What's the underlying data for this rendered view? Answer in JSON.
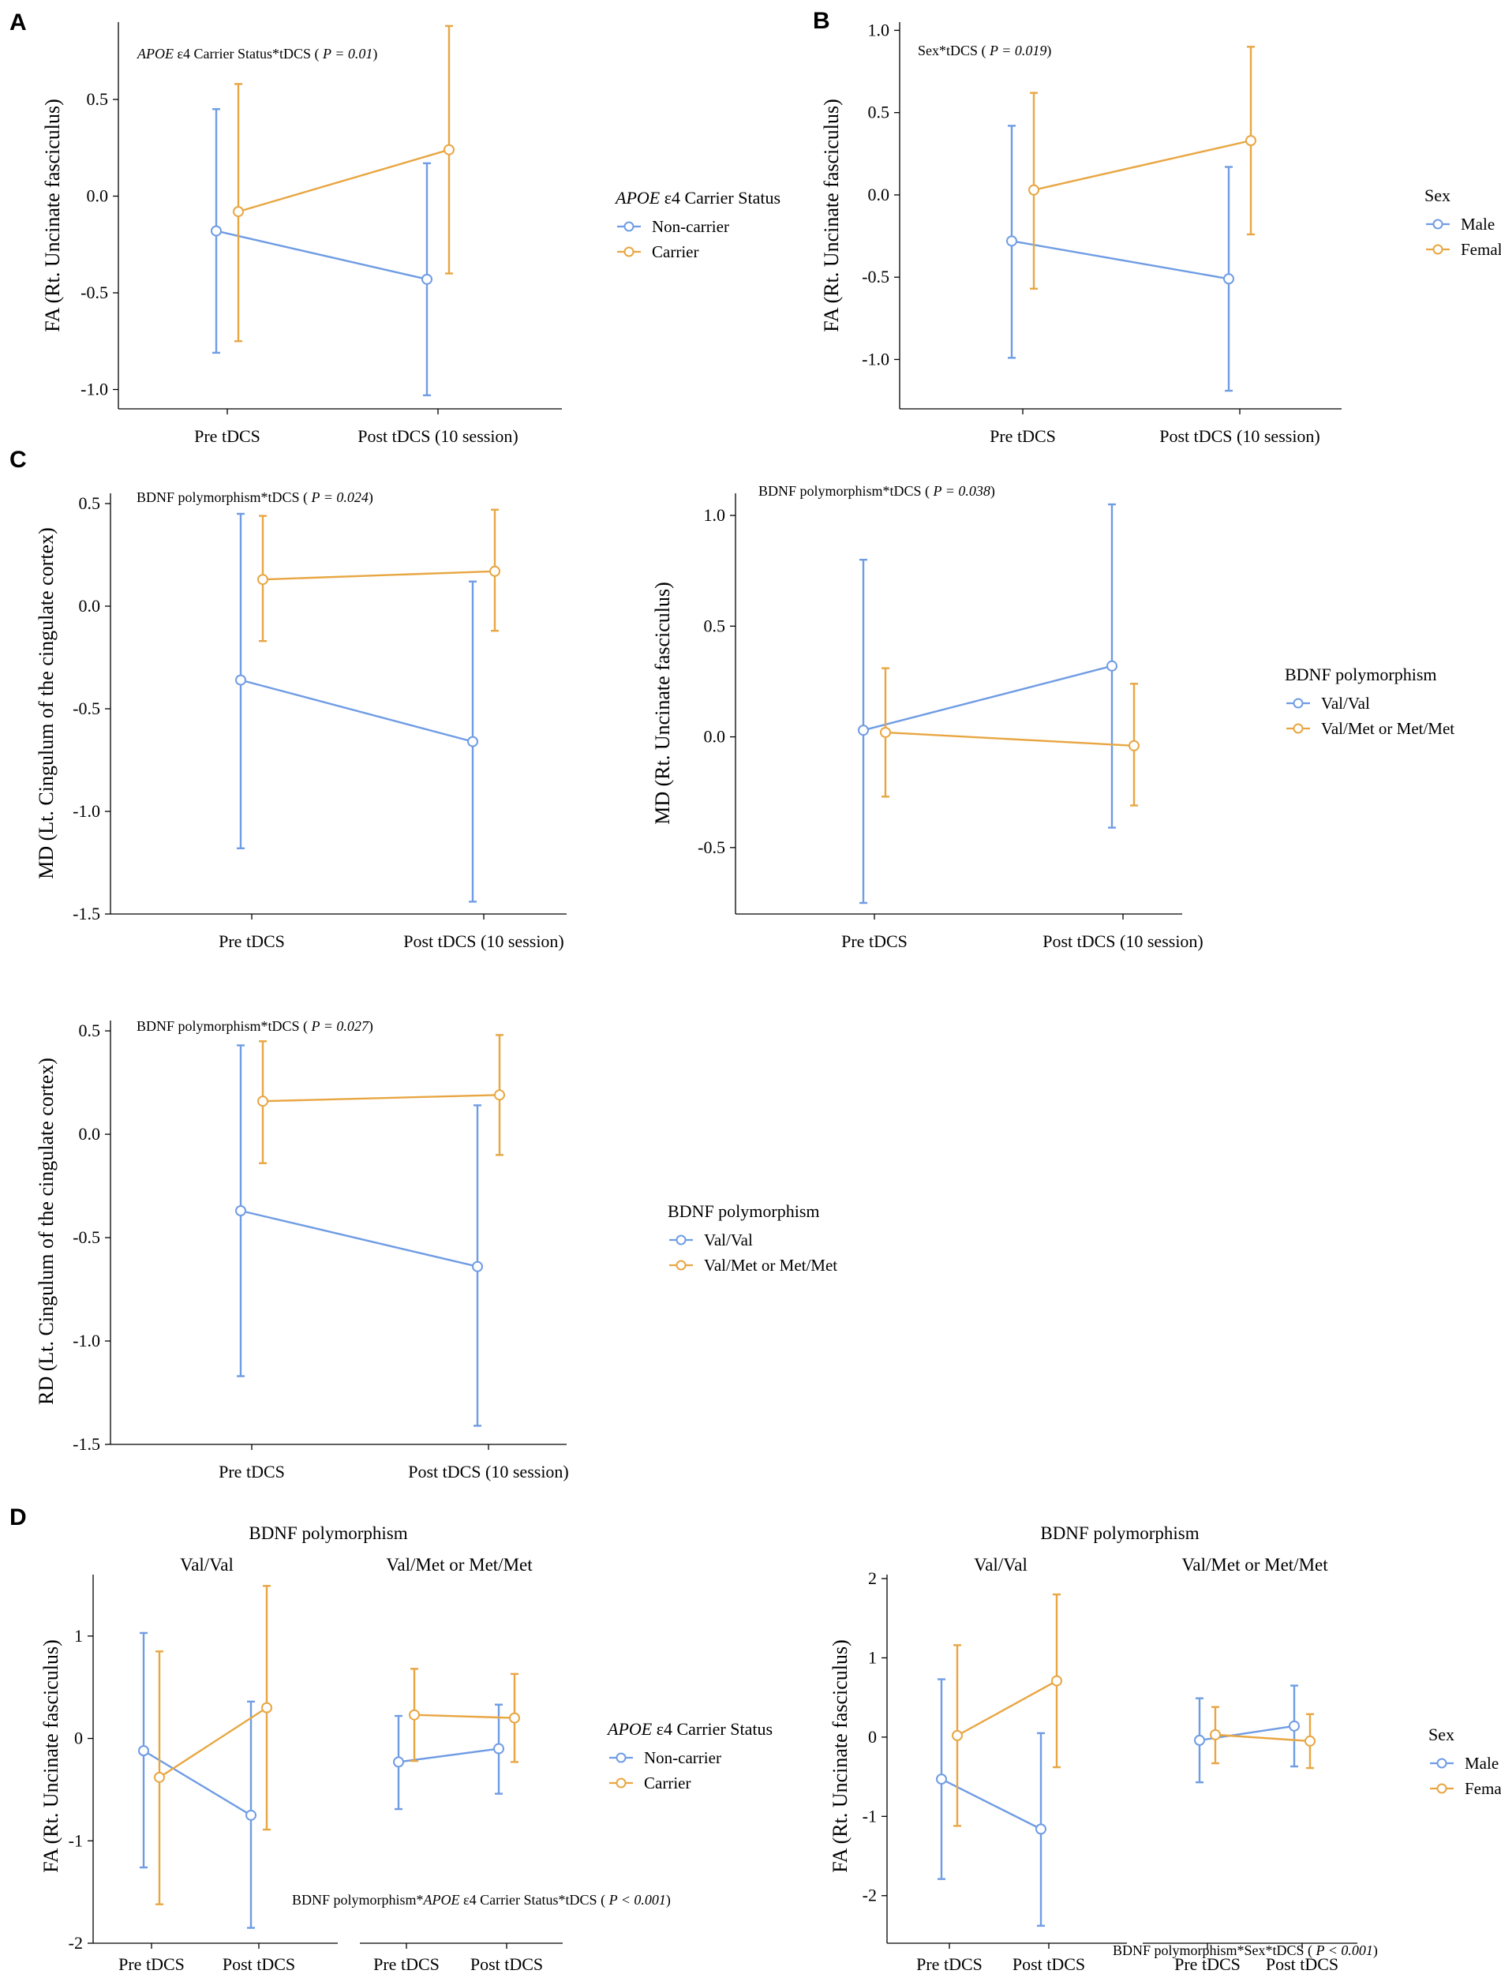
{
  "colors": {
    "series0": "#6F9CE4",
    "series1": "#E8A642",
    "marker_fill": "#ffffff",
    "axis": "#000000"
  },
  "panels": [
    {
      "id": "A",
      "letter": "A",
      "annotation_prefix": "APOE",
      "annotation_rest": " ε4 Carrier Status*tDCS ( ",
      "annotation_p": "P = 0.01",
      "annotation_close": ")",
      "ylabel": "FA (Rt. Uncinate fasciculus)",
      "categories": [
        "Pre tDCS",
        "Post tDCS (10 session)"
      ],
      "yticks": [
        -1.0,
        -0.5,
        0.0,
        0.5
      ],
      "ytick_labels": [
        "-1.0",
        "-0.5",
        "0.0",
        "0.5"
      ],
      "legend_title_prefix": "APOE",
      "legend_title_rest": " ε4 Carrier Status",
      "legend_items": [
        "Non-carrier",
        "Carrier"
      ]
    },
    {
      "id": "B",
      "letter": "B",
      "annotation_prefix": "",
      "annotation_rest": "Sex*tDCS ( ",
      "annotation_p": "P = 0.019",
      "annotation_close": ")",
      "ylabel": "FA (Rt. Uncinate fasciculus)",
      "categories": [
        "Pre tDCS",
        "Post tDCS (10 session)"
      ],
      "yticks": [
        -1.0,
        -0.5,
        0.0,
        0.5,
        1.0
      ],
      "ytick_labels": [
        "-1.0",
        "-0.5",
        "0.0",
        "0.5",
        "1.0"
      ],
      "legend_title_prefix": "",
      "legend_title_rest": "Sex",
      "legend_items": [
        "Male",
        "Female"
      ]
    },
    {
      "id": "C1",
      "letter": "C",
      "annotation_prefix": "",
      "annotation_rest": "BDNF polymorphism*tDCS ( ",
      "annotation_p": "P = 0.024",
      "annotation_close": ")",
      "ylabel": "MD (Lt. Cingulum of the cingulate cortex)",
      "categories": [
        "Pre tDCS",
        "Post tDCS (10 session)"
      ],
      "yticks": [
        -1.5,
        -1.0,
        -0.5,
        0.0,
        0.5
      ],
      "ytick_labels": [
        "-1.5",
        "-1.0",
        "-0.5",
        "0.0",
        "0.5"
      ]
    },
    {
      "id": "C2",
      "letter": "",
      "annotation_prefix": "",
      "annotation_rest": "BDNF polymorphism*tDCS ( ",
      "annotation_p": "P = 0.038",
      "annotation_close": ")",
      "ylabel": "MD (Rt. Uncinate fasciculus)",
      "categories": [
        "Pre tDCS",
        "Post tDCS (10 session)"
      ],
      "yticks": [
        -0.5,
        0.0,
        0.5,
        1.0
      ],
      "ytick_labels": [
        "-0.5",
        "0.0",
        "0.5",
        "1.0"
      ],
      "legend_title_prefix": "",
      "legend_title_rest": "BDNF polymorphism",
      "legend_items": [
        "Val/Val",
        "Val/Met or Met/Met"
      ]
    },
    {
      "id": "C3",
      "letter": "",
      "annotation_prefix": "",
      "annotation_rest": "BDNF polymorphism*tDCS ( ",
      "annotation_p": "P = 0.027",
      "annotation_close": ")",
      "ylabel": "RD (Lt. Cingulum of the cingulate cortex)",
      "categories": [
        "Pre tDCS",
        "Post tDCS (10 session)"
      ],
      "yticks": [
        -1.5,
        -1.0,
        -0.5,
        0.0,
        0.5
      ],
      "ytick_labels": [
        "-1.5",
        "-1.0",
        "-0.5",
        "0.0",
        "0.5"
      ],
      "legend_title_prefix": "",
      "legend_title_rest": "BDNF polymorphism",
      "legend_items": [
        "Val/Val",
        "Val/Met or Met/Met"
      ]
    },
    {
      "id": "D1",
      "letter": "D",
      "facet_super": "BDNF polymorphism",
      "facet_labels": [
        "Val/Val",
        "Val/Met or Met/Met"
      ],
      "annotation_prefix": "BDNF polymorphism*",
      "annotation_italic": "APOE",
      "annotation_rest": " ε4 Carrier Status*tDCS ( ",
      "annotation_p": "P < 0.001",
      "annotation_close": ")",
      "ylabel": "FA (Rt. Uncinate fasciculus)",
      "categories": [
        "Pre tDCS",
        "Post tDCS"
      ],
      "yticks": [
        -2,
        -1,
        0,
        1
      ],
      "ytick_labels": [
        "-2",
        "-1",
        "0",
        "1"
      ],
      "legend_title_prefix": "APOE",
      "legend_title_rest": " ε4 Carrier Status",
      "legend_items": [
        "Non-carrier",
        "Carrier"
      ]
    },
    {
      "id": "D2",
      "letter": "",
      "facet_super": "BDNF polymorphism",
      "facet_labels": [
        "Val/Val",
        "Val/Met or Met/Met"
      ],
      "annotation_prefix": "BDNF polymorphism*Sex*tDCS ( ",
      "annotation_italic": "",
      "annotation_rest": "",
      "annotation_p": "P < 0.001",
      "annotation_close": ")",
      "ylabel": "FA (Rt. Uncinate fasciculus)",
      "categories": [
        "Pre tDCS",
        "Post tDCS"
      ],
      "yticks": [
        -2,
        -1,
        0,
        1,
        2
      ],
      "ytick_labels": [
        "-2",
        "-1",
        "0",
        "1",
        "2"
      ],
      "legend_title_prefix": "",
      "legend_title_rest": "Sex",
      "legend_items": [
        "Male",
        "Female"
      ]
    }
  ],
  "chart_data": [
    {
      "panel": "A",
      "type": "line",
      "errorbars": true,
      "title": "APOE ε4 Carrier Status*tDCS ( P = 0.01)",
      "xlabel": "",
      "ylabel": "FA (Rt. Uncinate fasciculus)",
      "categories": [
        "Pre tDCS",
        "Post tDCS (10 session)"
      ],
      "ylim": [
        -1.1,
        0.9
      ],
      "series": [
        {
          "name": "Non-carrier",
          "values": [
            -0.18,
            -0.43
          ],
          "lower": [
            -0.81,
            -1.03
          ],
          "upper": [
            0.45,
            0.17
          ]
        },
        {
          "name": "Carrier",
          "values": [
            -0.08,
            0.24
          ],
          "lower": [
            -0.75,
            -0.4
          ],
          "upper": [
            0.58,
            0.88
          ]
        }
      ]
    },
    {
      "panel": "B",
      "type": "line",
      "errorbars": true,
      "title": "Sex*tDCS ( P = 0.019)",
      "xlabel": "",
      "ylabel": "FA (Rt. Uncinate fasciculus)",
      "categories": [
        "Pre tDCS",
        "Post tDCS (10 session)"
      ],
      "ylim": [
        -1.3,
        1.05
      ],
      "series": [
        {
          "name": "Male",
          "values": [
            -0.28,
            -0.51
          ],
          "lower": [
            -0.99,
            -1.19
          ],
          "upper": [
            0.42,
            0.17
          ]
        },
        {
          "name": "Female",
          "values": [
            0.03,
            0.33
          ],
          "lower": [
            -0.57,
            -0.24
          ],
          "upper": [
            0.62,
            0.9
          ]
        }
      ]
    },
    {
      "panel": "C1",
      "type": "line",
      "errorbars": true,
      "title": "BDNF polymorphism*tDCS ( P = 0.024)",
      "xlabel": "",
      "ylabel": "MD (Lt. Cingulum of the cingulate cortex)",
      "categories": [
        "Pre tDCS",
        "Post tDCS (10 session)"
      ],
      "ylim": [
        -1.5,
        0.55
      ],
      "series": [
        {
          "name": "Val/Val",
          "values": [
            -0.36,
            -0.66
          ],
          "lower": [
            -1.18,
            -1.44
          ],
          "upper": [
            0.45,
            0.12
          ]
        },
        {
          "name": "Val/Met or Met/Met",
          "values": [
            0.13,
            0.17
          ],
          "lower": [
            -0.17,
            -0.12
          ],
          "upper": [
            0.44,
            0.47
          ]
        }
      ]
    },
    {
      "panel": "C2",
      "type": "line",
      "errorbars": true,
      "title": "BDNF polymorphism*tDCS ( P = 0.038)",
      "xlabel": "",
      "ylabel": "MD (Rt. Uncinate fasciculus)",
      "categories": [
        "Pre tDCS",
        "Post tDCS (10 session)"
      ],
      "ylim": [
        -0.8,
        1.1
      ],
      "series": [
        {
          "name": "Val/Val",
          "values": [
            0.03,
            0.32
          ],
          "lower": [
            -0.75,
            -0.41
          ],
          "upper": [
            0.8,
            1.05
          ]
        },
        {
          "name": "Val/Met or Met/Met",
          "values": [
            0.02,
            -0.04
          ],
          "lower": [
            -0.27,
            -0.31
          ],
          "upper": [
            0.31,
            0.24
          ]
        }
      ]
    },
    {
      "panel": "C3",
      "type": "line",
      "errorbars": true,
      "title": "BDNF polymorphism*tDCS ( P = 0.027)",
      "xlabel": "",
      "ylabel": "RD (Lt. Cingulum of the cingulate cortex)",
      "categories": [
        "Pre tDCS",
        "Post tDCS (10 session)"
      ],
      "ylim": [
        -1.5,
        0.55
      ],
      "series": [
        {
          "name": "Val/Val",
          "values": [
            -0.37,
            -0.64
          ],
          "lower": [
            -1.17,
            -1.41
          ],
          "upper": [
            0.43,
            0.14
          ]
        },
        {
          "name": "Val/Met or Met/Met",
          "values": [
            0.16,
            0.19
          ],
          "lower": [
            -0.14,
            -0.1
          ],
          "upper": [
            0.45,
            0.48
          ]
        }
      ]
    },
    {
      "panel": "D1",
      "type": "line",
      "errorbars": true,
      "facets": [
        "Val/Val",
        "Val/Met or Met/Met"
      ],
      "title": "BDNF polymorphism*APOE ε4 Carrier Status*tDCS ( P < 0.001)",
      "xlabel": "",
      "ylabel": "FA (Rt. Uncinate fasciculus)",
      "categories": [
        "Pre tDCS",
        "Post tDCS"
      ],
      "ylim": [
        -2.0,
        1.6
      ],
      "series": [
        {
          "name": "Non-carrier",
          "facet": "Val/Val",
          "values": [
            -0.12,
            -0.75
          ],
          "lower": [
            -1.26,
            -1.85
          ],
          "upper": [
            1.03,
            0.36
          ]
        },
        {
          "name": "Carrier",
          "facet": "Val/Val",
          "values": [
            -0.38,
            0.3
          ],
          "lower": [
            -1.62,
            -0.89
          ],
          "upper": [
            0.85,
            1.49
          ]
        },
        {
          "name": "Non-carrier",
          "facet": "Val/Met or Met/Met",
          "values": [
            -0.23,
            -0.1
          ],
          "lower": [
            -0.69,
            -0.54
          ],
          "upper": [
            0.22,
            0.33
          ]
        },
        {
          "name": "Carrier",
          "facet": "Val/Met or Met/Met",
          "values": [
            0.23,
            0.2
          ],
          "lower": [
            -0.22,
            -0.23
          ],
          "upper": [
            0.68,
            0.63
          ]
        }
      ]
    },
    {
      "panel": "D2",
      "type": "line",
      "errorbars": true,
      "facets": [
        "Val/Val",
        "Val/Met or Met/Met"
      ],
      "title": "BDNF polymorphism*Sex*tDCS ( P < 0.001)",
      "xlabel": "",
      "ylabel": "FA (Rt. Uncinate fasciculus)",
      "categories": [
        "Pre tDCS",
        "Post tDCS"
      ],
      "ylim": [
        -2.6,
        2.05
      ],
      "series": [
        {
          "name": "Male",
          "facet": "Val/Val",
          "values": [
            -0.53,
            -1.16
          ],
          "lower": [
            -1.79,
            -2.38
          ],
          "upper": [
            0.73,
            0.05
          ]
        },
        {
          "name": "Female",
          "facet": "Val/Val",
          "values": [
            0.02,
            0.71
          ],
          "lower": [
            -1.12,
            -0.38
          ],
          "upper": [
            1.16,
            1.8
          ]
        },
        {
          "name": "Male",
          "facet": "Val/Met or Met/Met",
          "values": [
            -0.04,
            0.14
          ],
          "lower": [
            -0.57,
            -0.37
          ],
          "upper": [
            0.49,
            0.65
          ]
        },
        {
          "name": "Female",
          "facet": "Val/Met or Met/Met",
          "values": [
            0.03,
            -0.05
          ],
          "lower": [
            -0.33,
            -0.39
          ],
          "upper": [
            0.38,
            0.29
          ]
        }
      ]
    }
  ]
}
